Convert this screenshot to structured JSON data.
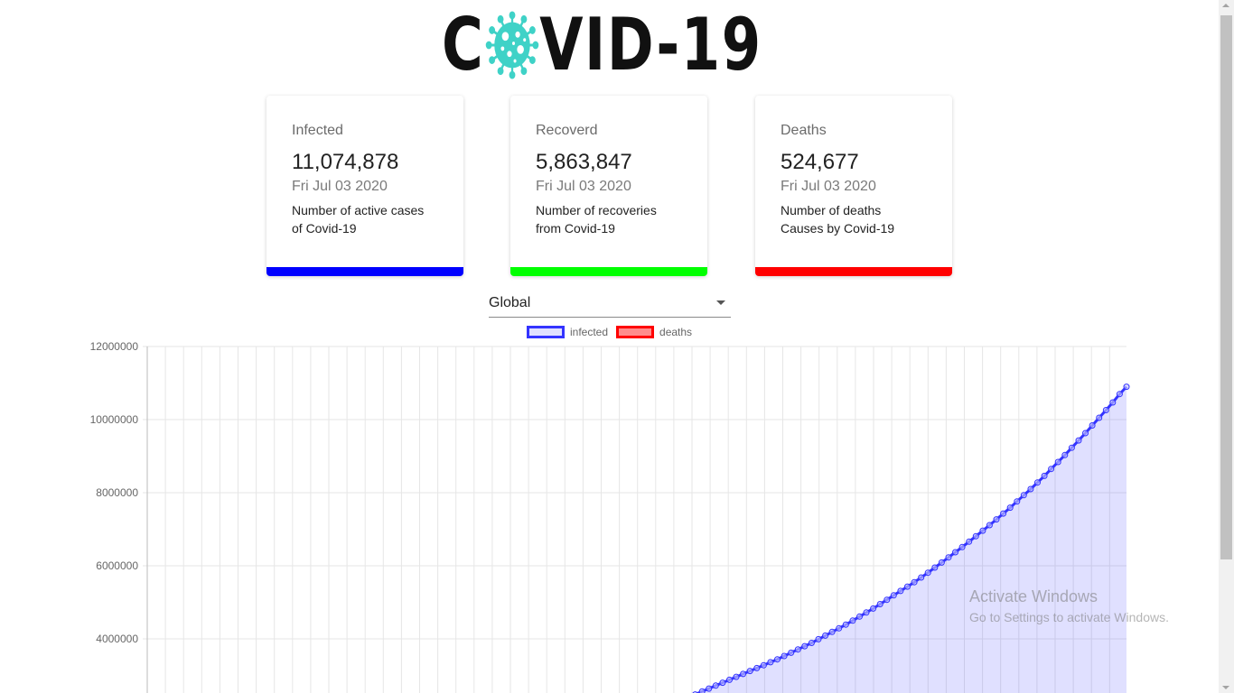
{
  "header": {
    "logo_left": "C",
    "logo_right": "VID-19",
    "logo_icon": "virus-icon",
    "virus_color": "#3fd2c7"
  },
  "cards": [
    {
      "title": "Infected",
      "value": "11,074,878",
      "date": "Fri Jul 03 2020",
      "desc_line1": "Number of active cases",
      "desc_line2": "of Covid-19",
      "color": "#0000ff"
    },
    {
      "title": "Recoverd",
      "value": "5,863,847",
      "date": "Fri Jul 03 2020",
      "desc_line1": "Number of recoveries",
      "desc_line2": "from Covid-19",
      "color": "#00ff00"
    },
    {
      "title": "Deaths",
      "value": "524,677",
      "date": "Fri Jul 03 2020",
      "desc_line1": "Number of deaths",
      "desc_line2": "Causes by Covid-19",
      "color": "#ff0000"
    }
  ],
  "country_select": {
    "value": "Global",
    "icon": "chevron-down-icon"
  },
  "chart_data": {
    "type": "line",
    "ylim": [
      2000000,
      12000000
    ],
    "yticks": [
      "12000000",
      "10000000",
      "8000000",
      "6000000",
      "4000000"
    ],
    "grid": true,
    "legend_position": "top",
    "series": [
      {
        "name": "infected",
        "color": "#3333ff",
        "fill": "rgba(0,0,255,0.12)",
        "values": [
          2400000,
          2480000,
          2560000,
          2640000,
          2720000,
          2800000,
          2880000,
          2960000,
          3040000,
          3120000,
          3200000,
          3280000,
          3360000,
          3440000,
          3530000,
          3620000,
          3710000,
          3800000,
          3890000,
          3990000,
          4090000,
          4190000,
          4290000,
          4390000,
          4500000,
          4610000,
          4720000,
          4830000,
          4950000,
          5070000,
          5190000,
          5310000,
          5430000,
          5550000,
          5680000,
          5810000,
          5950000,
          6090000,
          6230000,
          6370000,
          6510000,
          6660000,
          6810000,
          6960000,
          7110000,
          7270000,
          7430000,
          7590000,
          7760000,
          7930000,
          8100000,
          8280000,
          8460000,
          8650000,
          8840000,
          9030000,
          9230000,
          9430000,
          9630000,
          9840000,
          10050000,
          10260000,
          10470000,
          10700000,
          10900000
        ]
      },
      {
        "name": "deaths",
        "color": "#ff0000",
        "fill": "rgba(255,0,0,0.45)",
        "values": []
      }
    ]
  },
  "watermark": {
    "line1": "Activate Windows",
    "line2": "Go to Settings to activate Windows."
  }
}
